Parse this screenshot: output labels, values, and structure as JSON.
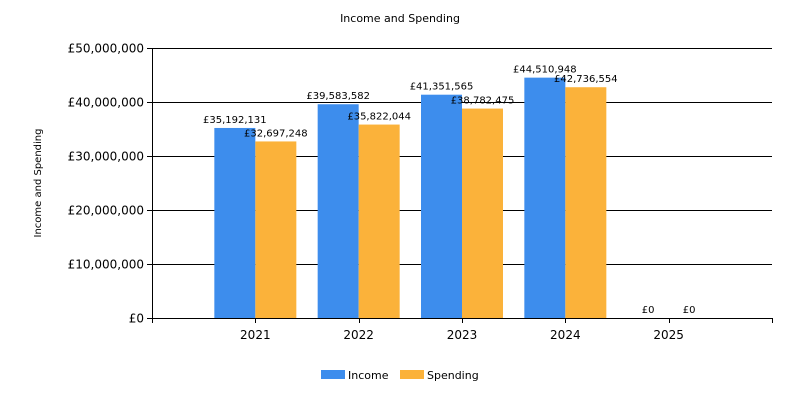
{
  "chart_data": {
    "type": "bar",
    "title": "Income and Spending",
    "xlabel": "",
    "ylabel": "Income and Spending",
    "categories": [
      "2021",
      "2022",
      "2023",
      "2024",
      "2025"
    ],
    "series": [
      {
        "name": "Income",
        "color": "#3d8ded",
        "values": [
          35192131,
          39583582,
          41351565,
          44510948,
          0
        ],
        "labels": [
          "£35,192,131",
          "£39,583,582",
          "£41,351,565",
          "£44,510,948",
          "£0"
        ]
      },
      {
        "name": "Spending",
        "color": "#fbb23a",
        "values": [
          32697248,
          35822044,
          38782475,
          42736554,
          0
        ],
        "labels": [
          "£32,697,248",
          "£35,822,044",
          "£38,782,475",
          "£42,736,554",
          "£0"
        ]
      }
    ],
    "ylim": [
      0,
      50000000
    ],
    "yticks": [
      0,
      10000000,
      20000000,
      30000000,
      40000000,
      50000000
    ],
    "ytick_labels": [
      "£0",
      "£10,000,000",
      "£20,000,000",
      "£30,000,000",
      "£40,000,000",
      "£50,000,000"
    ],
    "grid": true,
    "legend_position": "bottom-center"
  }
}
